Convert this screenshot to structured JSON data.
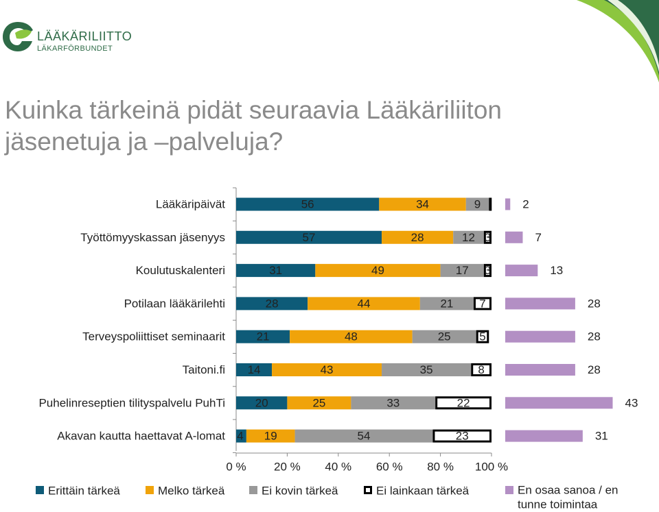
{
  "header": {
    "logo_name": "LÄÄKÄRILIITTO",
    "logo_sub": "LÄKARFÖRBUNDET",
    "title_line1": "Kuinka tärkeinä pidät seuraavia Lääkäriliiton",
    "title_line2": "jäsenetuja ja –palveluja?"
  },
  "colors": {
    "brand_green": "#2e6b47",
    "accent_light_green": "#8cc63f",
    "title_gray": "#8a8a8a"
  },
  "chart_data": {
    "type": "bar",
    "orientation": "horizontal-stacked-100",
    "categories": [
      "Lääkäripäivät",
      "Työttömyyskassan jäsenyys",
      "Koulutuskalenteri",
      "Potilaan lääkärilehti",
      "Terveyspoliittiset seminaarit",
      "Taitoni.fi",
      "Puhelinreseptien tilityspalvelu PuhTi",
      "Akavan kautta haettavat A-lomat"
    ],
    "series": [
      {
        "name": "Erittäin tärkeä",
        "color": "#0e5b78",
        "values": [
          56,
          57,
          31,
          28,
          21,
          14,
          20,
          4
        ]
      },
      {
        "name": "Melko tärkeä",
        "color": "#f0a30a",
        "values": [
          34,
          28,
          49,
          44,
          48,
          43,
          25,
          19
        ]
      },
      {
        "name": "Ei kovin tärkeä",
        "color": "#999999",
        "values": [
          9,
          12,
          17,
          21,
          25,
          35,
          33,
          54
        ]
      },
      {
        "name": "Ei lainkaan tärkeä",
        "color": "#ffffff",
        "stroke": "#000000",
        "values": [
          1,
          3,
          3,
          7,
          5,
          8,
          22,
          23
        ]
      }
    ],
    "value_labels": {
      "Erittäin tärkeä": [
        "56",
        "57",
        "31",
        "28",
        "21",
        "14",
        "20",
        "4"
      ],
      "Melko tärkeä": [
        "34",
        "28",
        "49",
        "44",
        "48",
        "43",
        "25",
        "19"
      ],
      "Ei kovin tärkeä": [
        "9",
        "12",
        "17",
        "21",
        "25",
        "35",
        "33",
        "54"
      ],
      "Ei lainkaan tärkeä": [
        "",
        "3",
        "3",
        "7",
        "5",
        "8",
        "22",
        "23"
      ]
    },
    "secondary_series": {
      "name": "En osaa sanoa / en tunne toimintaa",
      "color": "#b38fc4",
      "values": [
        2,
        7,
        13,
        28,
        28,
        28,
        43,
        31
      ]
    },
    "xaxis": {
      "ticks": [
        "0 %",
        "20 %",
        "40 %",
        "60 %",
        "80 %",
        "100 %"
      ],
      "xlim": [
        0,
        100
      ]
    },
    "legend": {
      "position": "bottom",
      "items": [
        "Erittäin tärkeä",
        "Melko tärkeä",
        "Ei kovin tärkeä",
        "Ei lainkaan tärkeä"
      ],
      "secondary_item_line1": "En osaa sanoa / en",
      "secondary_item_line2": "tunne toimintaa"
    },
    "grid": false
  }
}
